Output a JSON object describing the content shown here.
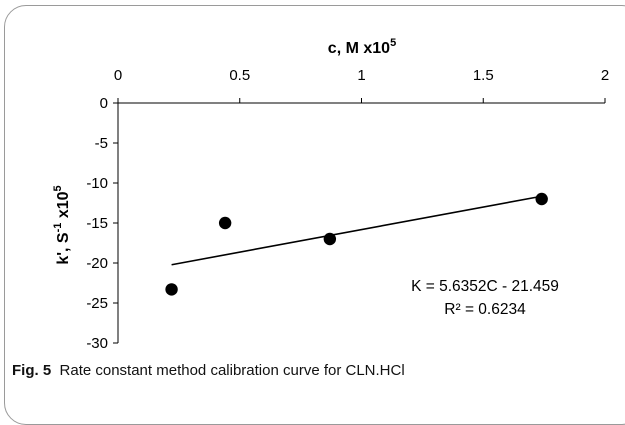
{
  "chart_data": {
    "type": "scatter",
    "title": "",
    "xlabel": "c, M x10",
    "xlabel_exponent": "5",
    "ylabel": "k', S",
    "ylabel_exponent": "-1",
    "ylabel_suffix": " x10",
    "ylabel_suffix_exponent": "5",
    "xlim": [
      0,
      2
    ],
    "ylim": [
      -30,
      0
    ],
    "x_ticks": [
      "0",
      "0.5",
      "1",
      "1.5",
      "2"
    ],
    "y_ticks": [
      "0",
      "-5",
      "-10",
      "-15",
      "-20",
      "-25",
      "-30"
    ],
    "x_axis_position": "top",
    "grid": false,
    "series": [
      {
        "x": [
          0.22,
          0.44,
          0.87,
          1.74
        ],
        "y": [
          -23.3,
          -15.0,
          -17.0,
          -12.0
        ],
        "marker_color": "#000000"
      }
    ],
    "trendline": {
      "type": "linear",
      "slope": 5.6352,
      "intercept": -21.459,
      "x_range": [
        0.22,
        1.74
      ],
      "color": "#000000"
    },
    "annotations": {
      "equation": "K = 5.6352C - 21.459",
      "r_squared": "R² = 0.6234"
    }
  },
  "caption": {
    "label": "Fig. 5",
    "text": "Rate constant method calibration curve for CLN.HCl"
  }
}
